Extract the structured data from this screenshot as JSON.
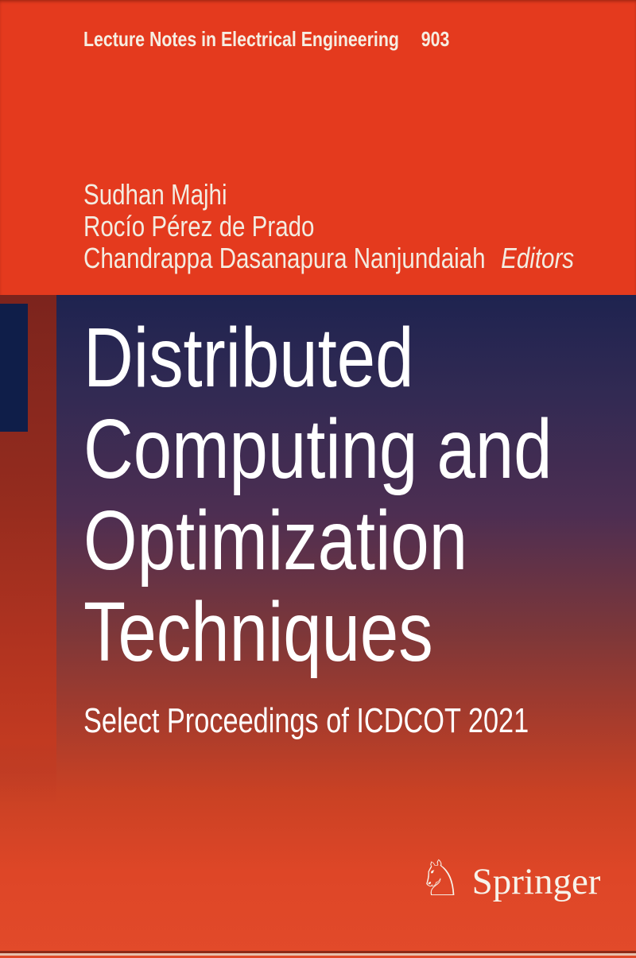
{
  "cover": {
    "series": {
      "name": "Lecture Notes in Electrical Engineering",
      "volume": "903"
    },
    "editors": {
      "names": [
        "Sudhan Majhi",
        "Rocío Pérez de Prado",
        "Chandrappa Dasanapura Nanjundaiah"
      ],
      "role_label": "Editors"
    },
    "title": {
      "lines": [
        "Distributed",
        "Computing and",
        "Optimization",
        "Techniques"
      ],
      "full": "Distributed Computing and Optimization Techniques"
    },
    "subtitle": "Select Proceedings of ICDCOT 2021",
    "publisher": {
      "name": "Springer",
      "logo_icon": "springer-horse-knight-icon",
      "knight_glyph": "♘"
    },
    "colors": {
      "band_red": "#e43a1e",
      "navy_square": "#0f1e49",
      "gradient_top_navy": "#1e2350",
      "gradient_mid_purple": "#4d2e52",
      "gradient_bottom_red": "#e24a2a",
      "spine_strip_maroon": "#7c241d",
      "cream_text": "#f3ece1",
      "title_text": "#ffffff"
    }
  }
}
